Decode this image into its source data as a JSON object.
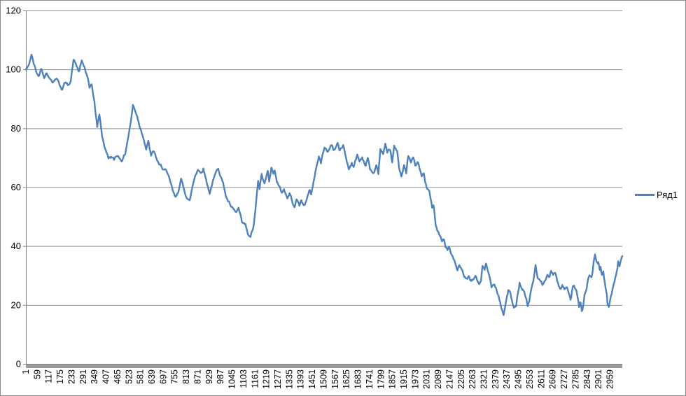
{
  "chart": {
    "legend": {
      "series_label": "Ряд1"
    },
    "colors": {
      "series": "#4F81BD",
      "gridline": "#8C8C8C",
      "axis": "#7F7F7F",
      "tick_band": "#9C9C9C",
      "text": "#000000",
      "border": "#8C8C8C",
      "background": "#FFFFFF"
    }
  },
  "chart_data": {
    "type": "line",
    "title": "",
    "xlabel": "",
    "ylabel": "",
    "ylim": [
      0,
      120
    ],
    "y_ticks": [
      0,
      20,
      40,
      60,
      80,
      100,
      120
    ],
    "x_range": [
      1,
      3021
    ],
    "x_tick_labels": [
      "1",
      "59",
      "117",
      "175",
      "233",
      "291",
      "349",
      "407",
      "465",
      "523",
      "581",
      "639",
      "697",
      "755",
      "813",
      "871",
      "929",
      "987",
      "1045",
      "1103",
      "1161",
      "1219",
      "1277",
      "1335",
      "1393",
      "1451",
      "1509",
      "1567",
      "1625",
      "1683",
      "1741",
      "1799",
      "1857",
      "1915",
      "1973",
      "2031",
      "2089",
      "2147",
      "2205",
      "2263",
      "2321",
      "2379",
      "2437",
      "2495",
      "2553",
      "2611",
      "2669",
      "2727",
      "2785",
      "2843",
      "2901",
      "2959"
    ],
    "x_tick_step": 58,
    "grid": "horizontal",
    "legend_position": "right",
    "x_label_rotation": 90,
    "noise_amplitude": 0.9,
    "series": [
      {
        "name": "Ряд1",
        "points": [
          [
            1,
            100
          ],
          [
            15,
            101
          ],
          [
            29,
            105
          ],
          [
            40,
            102
          ],
          [
            51,
            99.5
          ],
          [
            65,
            97.5
          ],
          [
            79,
            100.5
          ],
          [
            93,
            98
          ],
          [
            107,
            99.5
          ],
          [
            121,
            97
          ],
          [
            139,
            96.3
          ],
          [
            157,
            97.5
          ],
          [
            171,
            95
          ],
          [
            185,
            93.6
          ],
          [
            199,
            95.5
          ],
          [
            213,
            94.5
          ],
          [
            228,
            96.5
          ],
          [
            242,
            103.3
          ],
          [
            256,
            101.5
          ],
          [
            270,
            99
          ],
          [
            284,
            102.6
          ],
          [
            298,
            100.5
          ],
          [
            313,
            97
          ],
          [
            323,
            93
          ],
          [
            334,
            95
          ],
          [
            348,
            88.5
          ],
          [
            362,
            80.5
          ],
          [
            373,
            84.5
          ],
          [
            387,
            77.5
          ],
          [
            405,
            72.5
          ],
          [
            419,
            70
          ],
          [
            433,
            70.5
          ],
          [
            447,
            69
          ],
          [
            461,
            71
          ],
          [
            476,
            70
          ],
          [
            490,
            69.5
          ],
          [
            504,
            71.5
          ],
          [
            514,
            75.5
          ],
          [
            525,
            79.5
          ],
          [
            536,
            84
          ],
          [
            543,
            88
          ],
          [
            553,
            86
          ],
          [
            564,
            84.5
          ],
          [
            575,
            81.5
          ],
          [
            585,
            79.5
          ],
          [
            596,
            77.5
          ],
          [
            610,
            73.5
          ],
          [
            621,
            75.5
          ],
          [
            635,
            70.5
          ],
          [
            649,
            72
          ],
          [
            663,
            69.5
          ],
          [
            677,
            67
          ],
          [
            691,
            66.5
          ],
          [
            706,
            66
          ],
          [
            720,
            63.5
          ],
          [
            734,
            61
          ],
          [
            748,
            57.5
          ],
          [
            759,
            56
          ],
          [
            773,
            59
          ],
          [
            787,
            62.3
          ],
          [
            801,
            59.5
          ],
          [
            815,
            57
          ],
          [
            830,
            55.2
          ],
          [
            844,
            60
          ],
          [
            858,
            64
          ],
          [
            872,
            66.5
          ],
          [
            886,
            65
          ],
          [
            900,
            66.8
          ],
          [
            911,
            63.5
          ],
          [
            922,
            60.5
          ],
          [
            932,
            58.4
          ],
          [
            947,
            62
          ],
          [
            961,
            64.2
          ],
          [
            975,
            66.5
          ],
          [
            989,
            64
          ],
          [
            1003,
            60.5
          ],
          [
            1017,
            56.5
          ],
          [
            1028,
            55
          ],
          [
            1042,
            52.8
          ],
          [
            1056,
            51.5
          ],
          [
            1067,
            51
          ],
          [
            1078,
            52.5
          ],
          [
            1088,
            49.5
          ],
          [
            1095,
            47.3
          ],
          [
            1113,
            46.6
          ],
          [
            1124,
            43.7
          ],
          [
            1138,
            42.5
          ],
          [
            1149,
            45
          ],
          [
            1156,
            47.3
          ],
          [
            1163,
            52
          ],
          [
            1170,
            57
          ],
          [
            1177,
            61.5
          ],
          [
            1184,
            58.8
          ],
          [
            1195,
            64
          ],
          [
            1209,
            60.8
          ],
          [
            1219,
            63.5
          ],
          [
            1226,
            65.2
          ],
          [
            1233,
            62.3
          ],
          [
            1244,
            67.5
          ],
          [
            1254,
            64.4
          ],
          [
            1261,
            66.3
          ],
          [
            1272,
            62.3
          ],
          [
            1283,
            60
          ],
          [
            1297,
            58
          ],
          [
            1308,
            59.6
          ],
          [
            1325,
            56.3
          ],
          [
            1336,
            58
          ],
          [
            1350,
            55.2
          ],
          [
            1361,
            54
          ],
          [
            1371,
            56
          ],
          [
            1386,
            54
          ],
          [
            1396,
            55.5
          ],
          [
            1407,
            53.8
          ],
          [
            1417,
            55
          ],
          [
            1425,
            56.3
          ],
          [
            1439,
            58.8
          ],
          [
            1446,
            57.6
          ],
          [
            1457,
            61.6
          ],
          [
            1467,
            65.5
          ],
          [
            1484,
            70.3
          ],
          [
            1495,
            68.2
          ],
          [
            1513,
            73.9
          ],
          [
            1530,
            71.8
          ],
          [
            1548,
            74.6
          ],
          [
            1562,
            72.7
          ],
          [
            1580,
            75.1
          ],
          [
            1590,
            72.2
          ],
          [
            1608,
            74.1
          ],
          [
            1626,
            69.1
          ],
          [
            1636,
            66.3
          ],
          [
            1651,
            68.7
          ],
          [
            1661,
            66.8
          ],
          [
            1679,
            71
          ],
          [
            1690,
            68.7
          ],
          [
            1704,
            70.3
          ],
          [
            1722,
            67.5
          ],
          [
            1732,
            69.9
          ],
          [
            1743,
            66.3
          ],
          [
            1761,
            64.6
          ],
          [
            1775,
            67
          ],
          [
            1786,
            64.4
          ],
          [
            1796,
            73
          ],
          [
            1810,
            71
          ],
          [
            1821,
            73.9
          ],
          [
            1831,
            70.3
          ],
          [
            1845,
            72.2
          ],
          [
            1856,
            68.2
          ],
          [
            1866,
            73.4
          ],
          [
            1881,
            71.5
          ],
          [
            1891,
            66.3
          ],
          [
            1902,
            63.9
          ],
          [
            1916,
            68
          ],
          [
            1927,
            64.6
          ],
          [
            1937,
            70.6
          ],
          [
            1951,
            68.2
          ],
          [
            1962,
            69.9
          ],
          [
            1973,
            67
          ],
          [
            1987,
            68.2
          ],
          [
            1998,
            65.6
          ],
          [
            2005,
            63.5
          ],
          [
            2016,
            64.4
          ],
          [
            2023,
            61.6
          ],
          [
            2033,
            59.2
          ],
          [
            2044,
            58.4
          ],
          [
            2051,
            55.2
          ],
          [
            2058,
            52.8
          ],
          [
            2065,
            54.4
          ],
          [
            2076,
            48
          ],
          [
            2087,
            45.5
          ],
          [
            2097,
            44.2
          ],
          [
            2108,
            42.1
          ],
          [
            2119,
            42.5
          ],
          [
            2126,
            39.7
          ],
          [
            2136,
            38.5
          ],
          [
            2143,
            39.7
          ],
          [
            2154,
            37.8
          ],
          [
            2165,
            35.9
          ],
          [
            2175,
            33.7
          ],
          [
            2186,
            31.4
          ],
          [
            2196,
            32.6
          ],
          [
            2207,
            31.4
          ],
          [
            2218,
            29.9
          ],
          [
            2232,
            28.3
          ],
          [
            2243,
            29.5
          ],
          [
            2253,
            27.6
          ],
          [
            2267,
            28.3
          ],
          [
            2278,
            30.2
          ],
          [
            2285,
            28.3
          ],
          [
            2296,
            27.1
          ],
          [
            2306,
            28.7
          ],
          [
            2313,
            33
          ],
          [
            2324,
            31.4
          ],
          [
            2331,
            33.5
          ],
          [
            2342,
            30.7
          ],
          [
            2352,
            28.3
          ],
          [
            2359,
            26.4
          ],
          [
            2374,
            27.6
          ],
          [
            2384,
            25.9
          ],
          [
            2395,
            23.5
          ],
          [
            2409,
            19.5
          ],
          [
            2420,
            17.1
          ],
          [
            2430,
            20.4
          ],
          [
            2437,
            23.5
          ],
          [
            2444,
            25.2
          ],
          [
            2455,
            23.5
          ],
          [
            2465,
            20.4
          ],
          [
            2472,
            18.3
          ],
          [
            2483,
            19.5
          ],
          [
            2490,
            22.8
          ],
          [
            2501,
            27.6
          ],
          [
            2515,
            25.2
          ],
          [
            2525,
            24
          ],
          [
            2532,
            21.9
          ],
          [
            2542,
            19.5
          ],
          [
            2550,
            21
          ],
          [
            2557,
            24
          ],
          [
            2564,
            26.5
          ],
          [
            2571,
            28.5
          ],
          [
            2582,
            33
          ],
          [
            2592,
            29
          ],
          [
            2607,
            27.8
          ],
          [
            2617,
            26.6
          ],
          [
            2628,
            29
          ],
          [
            2642,
            30.7
          ],
          [
            2653,
            29.5
          ],
          [
            2660,
            31.4
          ],
          [
            2671,
            30.2
          ],
          [
            2681,
            31.4
          ],
          [
            2695,
            27.6
          ],
          [
            2706,
            25.5
          ],
          [
            2717,
            26.6
          ],
          [
            2731,
            25.1
          ],
          [
            2741,
            26.3
          ],
          [
            2752,
            24.3
          ],
          [
            2759,
            22.3
          ],
          [
            2770,
            26.3
          ],
          [
            2777,
            27.1
          ],
          [
            2788,
            25.1
          ],
          [
            2795,
            21.9
          ],
          [
            2802,
            18.8
          ],
          [
            2809,
            20.4
          ],
          [
            2816,
            17.6
          ],
          [
            2823,
            19.5
          ],
          [
            2830,
            22.8
          ],
          [
            2837,
            24.7
          ],
          [
            2847,
            28.3
          ],
          [
            2855,
            30.2
          ],
          [
            2865,
            29
          ],
          [
            2872,
            31.8
          ],
          [
            2876,
            34.7
          ],
          [
            2883,
            37.3
          ],
          [
            2890,
            35.4
          ],
          [
            2897,
            33.7
          ],
          [
            2900,
            34.2
          ],
          [
            2907,
            32.3
          ],
          [
            2911,
            33
          ],
          [
            2918,
            30.2
          ],
          [
            2925,
            31.1
          ],
          [
            2929,
            28.3
          ],
          [
            2936,
            25.5
          ],
          [
            2943,
            23.5
          ],
          [
            2946,
            20.7
          ],
          [
            2953,
            19.5
          ],
          [
            2964,
            23
          ],
          [
            2971,
            25.1
          ],
          [
            2982,
            27.8
          ],
          [
            2989,
            29.9
          ],
          [
            2996,
            32.6
          ],
          [
            3000,
            34.7
          ],
          [
            3007,
            33.5
          ],
          [
            3014,
            35.4
          ],
          [
            3021,
            36.6
          ]
        ]
      }
    ]
  }
}
